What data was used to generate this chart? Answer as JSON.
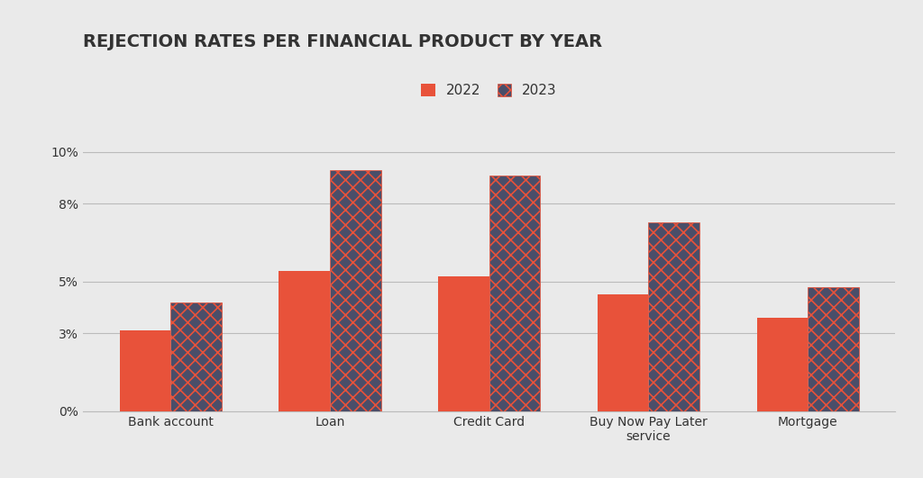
{
  "title": "REJECTION RATES PER FINANCIAL PRODUCT BY YEAR",
  "categories": [
    "Bank account",
    "Loan",
    "Credit Card",
    "Buy Now Pay Later\nservice",
    "Mortgage"
  ],
  "values_2022": [
    0.031,
    0.054,
    0.052,
    0.045,
    0.036
  ],
  "values_2023": [
    0.042,
    0.093,
    0.091,
    0.073,
    0.048
  ],
  "color_2022": "#E8523A",
  "color_2023": "#4A4E69",
  "hatch_color": "#E8523A",
  "background_color": "#EAEAEA",
  "ylim": [
    0,
    0.107
  ],
  "yticks": [
    0.0,
    0.03,
    0.05,
    0.08,
    0.1
  ],
  "ytick_labels": [
    "0%",
    "3%",
    "5%",
    "8%",
    "10%"
  ],
  "bar_width": 0.32,
  "title_fontsize": 14,
  "legend_fontsize": 11,
  "tick_fontsize": 10,
  "grid_color": "#BBBBBB",
  "text_color": "#333333"
}
